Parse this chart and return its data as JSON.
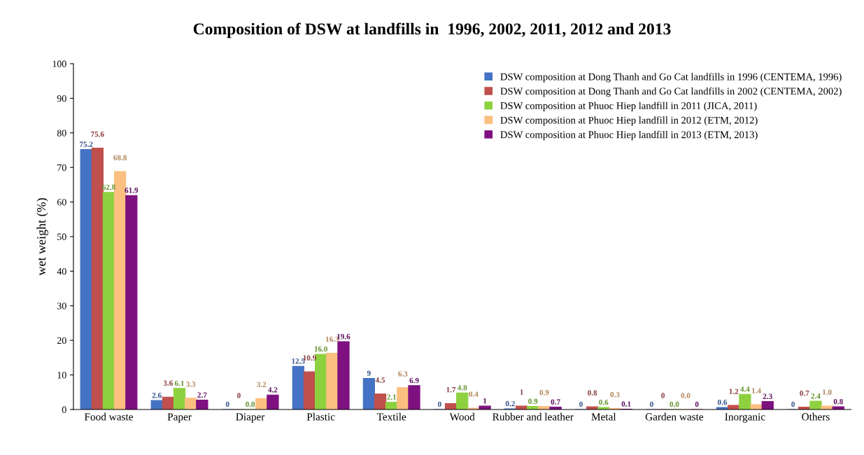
{
  "chart_data": {
    "type": "bar",
    "title": "Composition of DSW at landfills in  1996, 2002, 2011, 2012 and 2013",
    "ylabel": "wet weight (%)",
    "categories": [
      "Food waste",
      "Paper",
      "Diaper",
      "Plastic",
      "Textile",
      "Wood",
      "Rubber and leather",
      "Metal",
      "Garden waste",
      "Inorganic",
      "Others"
    ],
    "series": [
      {
        "name": "DSW composition at Dong Thanh and Go Cat landfills in 1996 (CENTEMA, 1996)",
        "color": "#4472c4",
        "values": [
          75.2,
          2.6,
          0,
          12.5,
          9,
          0,
          0.2,
          0,
          0,
          0.6,
          0
        ],
        "value_labels": [
          "75.2",
          "2.6",
          "0",
          "12.5",
          "9",
          "0",
          "0.2",
          "0",
          "0",
          "0.6",
          "0"
        ]
      },
      {
        "name": "DSW composition at Dong Thanh and Go Cat landfills in 2002 (CENTEMA, 2002)",
        "color": "#c0504d",
        "values": [
          75.6,
          3.6,
          0,
          10.9,
          4.5,
          1.7,
          1,
          0.8,
          0,
          1.2,
          0.7
        ],
        "value_labels": [
          "75.6",
          "3.6",
          "0",
          "10.9",
          "4.5",
          "1.7",
          "1",
          "0.8",
          "0",
          "1.2",
          "0.7"
        ]
      },
      {
        "name": "DSW composition at Phuoc Hiep landfill in 2011 (JICA, 2011)",
        "color": "#8ed13f",
        "values": [
          62.8,
          6.1,
          0,
          16.0,
          2.1,
          4.8,
          0.9,
          0.6,
          0,
          4.4,
          2.4
        ],
        "value_labels": [
          "62.8",
          "6.1",
          "0.0",
          "16.0",
          "2.1",
          "4.8",
          "0.9",
          "0.6",
          "0.0",
          "4.4",
          "2.4"
        ]
      },
      {
        "name": "DSW composition at Phuoc Hiep landfill in 2012 (ETM, 2012)",
        "color": "#fbbf80",
        "values": [
          68.8,
          3.3,
          3.2,
          16.3,
          6.3,
          0.4,
          0.9,
          0.3,
          0,
          1.4,
          1.0
        ],
        "value_labels": [
          "68.8",
          "3.3",
          "3.2",
          "16.3",
          "6.3",
          "0.4",
          "0.9",
          "0.3",
          "0.0",
          "1.4",
          "1.0"
        ]
      },
      {
        "name": "DSW composition at Phuoc Hiep landfill in 2013 (ETM, 2013)",
        "color": "#7f1080",
        "values": [
          61.9,
          2.7,
          4.2,
          19.6,
          6.9,
          1,
          0.7,
          0.1,
          0,
          2.3,
          0.8
        ],
        "value_labels": [
          "61.9",
          "2.7",
          "4.2",
          "19.6",
          "6.9",
          "1",
          "0.7",
          "0.1",
          "0",
          "2.3",
          "0.8"
        ]
      }
    ],
    "ylim": [
      0,
      100
    ],
    "yticks": [
      0,
      10,
      20,
      30,
      40,
      50,
      60,
      70,
      80,
      90,
      100
    ],
    "legend": "top right",
    "grid": false
  }
}
